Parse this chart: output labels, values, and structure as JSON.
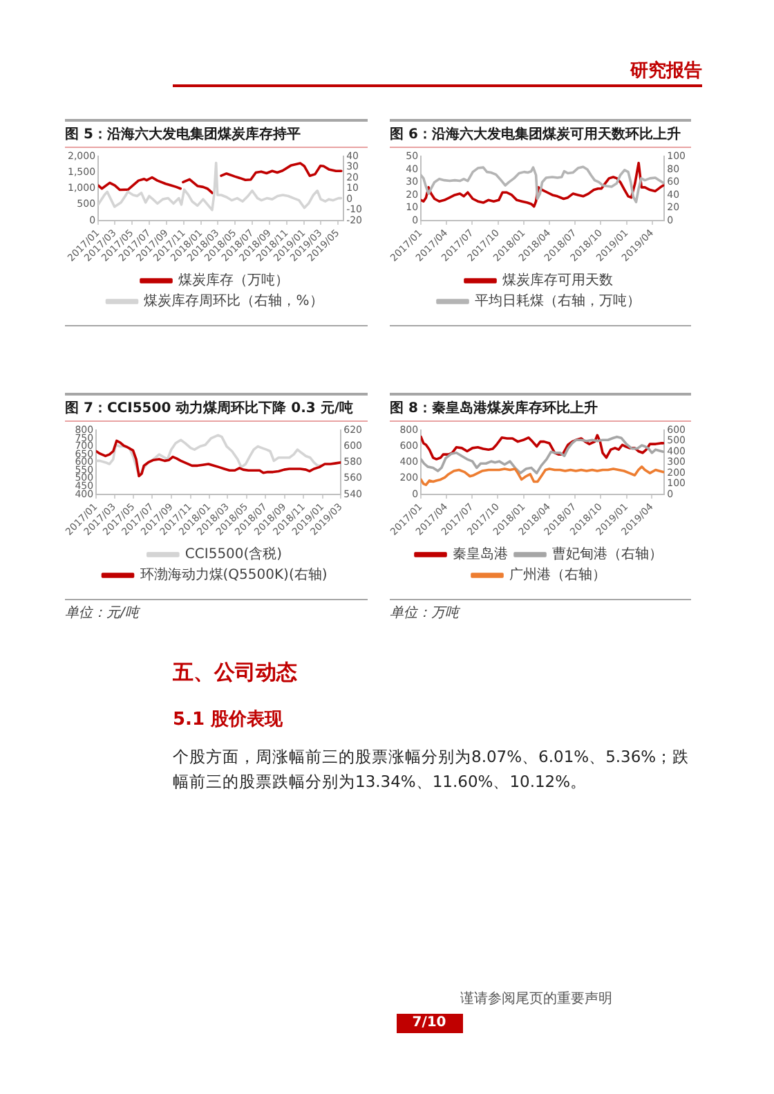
{
  "chart_data": [
    {
      "type": "other",
      "title": "研究报告"
    },
    {
      "type": "line",
      "title": "图 5：沿海六大发电集团煤炭库存持平",
      "legend": "bottom",
      "grid": false,
      "xlim": [
        "2017-01-01",
        "2019-05-21"
      ],
      "xticks": [
        {
          "value": "2017-01",
          "label": "2017/01"
        },
        {
          "value": "2017-03",
          "label": "2017/03"
        },
        {
          "value": "2017-05",
          "label": "2017/05"
        },
        {
          "value": "2017-07",
          "label": "2017/07"
        },
        {
          "value": "2017-09",
          "label": "2017/09"
        },
        {
          "value": "2017-11",
          "label": "2017/11"
        },
        {
          "value": "2018-01",
          "label": "2018/01"
        },
        {
          "value": "2018-03",
          "label": "2018/03"
        },
        {
          "value": "2018-05",
          "label": "2018/05"
        },
        {
          "value": "2018-07",
          "label": "2018/07"
        },
        {
          "value": "2018-09",
          "label": "2018/09"
        },
        {
          "value": "2018-11",
          "label": "2018/11"
        },
        {
          "value": "2019-01",
          "label": "2019/01"
        },
        {
          "value": "2019-03",
          "label": "2019/03"
        },
        {
          "value": "2019-05",
          "label": "2019/05"
        }
      ],
      "ylim": [
        0,
        2000
      ],
      "yticks": [
        0,
        500,
        {
          "value": 1000,
          "label": "1,000"
        },
        {
          "value": 1500,
          "label": "1,500"
        },
        {
          "value": 2000,
          "label": "2,000"
        }
      ],
      "y2lim": [
        -20,
        40
      ],
      "y2ticks": [
        -20,
        -10,
        0,
        10,
        20,
        30,
        40
      ],
      "series": [
        {
          "name": "煤炭库存（万吨）",
          "color": "#c00000",
          "x": [
            "2017-01-01",
            "2017-01-14",
            "2017-02-11",
            "2017-03-01",
            "2017-03-19",
            "2017-04-17",
            "2017-05-24",
            "2017-06-13",
            "2017-06-22",
            "2017-07-11",
            "2017-07-30",
            "2017-08-28",
            "2017-09-16",
            "2017-10-05",
            "2017-10-20",
            "2017-10-25",
            "2017-10-29",
            "2017-11-21",
            "2017-12-19",
            "2018-01-08",
            "2018-01-23",
            "2018-02-10",
            "2018-02-25",
            "2018-03-13",
            "2018-04-01",
            "2018-04-30",
            "2018-05-18",
            "2018-06-07",
            "2018-06-26",
            "2018-07-14",
            "2018-08-02",
            "2018-08-21",
            "2018-09-10",
            "2018-09-28",
            "2018-10-17",
            "2018-11-15",
            "2018-12-19",
            "2019-01-02",
            "2019-01-21",
            "2019-02-09",
            "2019-02-28",
            "2019-03-11",
            "2019-03-30",
            "2019-04-24",
            "2019-05-13"
          ],
          "values": [
            1100,
            1000,
            1180,
            1100,
            960,
            970,
            1250,
            1300,
            1260,
            1350,
            1250,
            1150,
            1100,
            1050,
            1000,
            null,
            1200,
            1290,
            1080,
            1050,
            1000,
            860,
            null,
            1400,
            1470,
            1380,
            1330,
            1270,
            1280,
            1500,
            1530,
            1480,
            1550,
            1500,
            1560,
            1720,
            1790,
            1700,
            1400,
            1450,
            1710,
            1700,
            1600,
            1550,
            1550
          ]
        },
        {
          "name": "煤炭库存周环比（右轴，%）",
          "color": "#d4d4d4",
          "axis": "y2",
          "x": [
            "2017-01-01",
            "2017-01-23",
            "2017-02-02",
            "2017-02-15",
            "2017-02-28",
            "2017-03-23",
            "2017-04-07",
            "2017-04-16",
            "2017-05-05",
            "2017-05-19",
            "2017-06-03",
            "2017-06-18",
            "2017-07-01",
            "2017-07-14",
            "2017-07-30",
            "2017-08-18",
            "2017-09-06",
            "2017-09-25",
            "2017-10-14",
            "2017-10-23",
            "2017-11-02",
            "2017-11-17",
            "2017-11-30",
            "2017-12-19",
            "2018-01-08",
            "2018-01-27",
            "2018-02-09",
            "2018-02-16",
            "2018-02-23",
            "2018-02-28",
            "2018-03-13",
            "2018-04-01",
            "2018-04-20",
            "2018-05-09",
            "2018-05-28",
            "2018-06-16",
            "2018-07-01",
            "2018-07-20",
            "2018-08-03",
            "2018-08-22",
            "2018-09-10",
            "2018-09-29",
            "2018-10-18",
            "2018-11-06",
            "2018-11-25",
            "2018-12-14",
            "2019-01-02",
            "2019-01-17",
            "2019-02-03",
            "2019-02-17",
            "2019-03-01",
            "2019-03-17",
            "2019-03-30",
            "2019-04-14",
            "2019-05-03",
            "2019-05-12"
          ],
          "values": [
            -5,
            4,
            7,
            0,
            -7,
            -3,
            3,
            7,
            4,
            3,
            6,
            -3,
            3,
            0,
            -4,
            0,
            1,
            -4,
            1,
            -5,
            9,
            4,
            -2,
            -6,
            0,
            -6,
            -10,
            4,
            34,
            4,
            4,
            2,
            -1,
            1,
            -2,
            3,
            8,
            1,
            -1,
            1,
            0,
            3,
            4,
            3,
            1,
            -1,
            -8,
            -4,
            4,
            8,
            0,
            -2,
            0,
            -1,
            1,
            1
          ]
        }
      ]
    },
    {
      "type": "line",
      "title": "图 6：沿海六大发电集团煤炭可用天数环比上升",
      "legend": "bottom",
      "grid": false,
      "xlim": [
        "2017-01-01",
        "2019-05-14"
      ],
      "xticks": [
        {
          "value": "2017-01",
          "label": "2017/01"
        },
        {
          "value": "2017-04",
          "label": "2017/04"
        },
        {
          "value": "2017-07",
          "label": "2017/07"
        },
        {
          "value": "2017-10",
          "label": "2017/10"
        },
        {
          "value": "2018-01",
          "label": "2018/01"
        },
        {
          "value": "2018-04",
          "label": "2018/04"
        },
        {
          "value": "2018-07",
          "label": "2018/07"
        },
        {
          "value": "2018-10",
          "label": "2018/10"
        },
        {
          "value": "2019-01",
          "label": "2019/01"
        },
        {
          "value": "2019-04",
          "label": "2019/04"
        }
      ],
      "ylim": [
        0,
        50
      ],
      "yticks": [
        0,
        10,
        20,
        30,
        40,
        50
      ],
      "y2lim": [
        0,
        100
      ],
      "y2ticks": [
        0,
        20,
        40,
        60,
        80,
        100
      ],
      "series": [
        {
          "name": "煤炭库存可用天数",
          "color": "#c00000",
          "x": [
            "2017-01-01",
            "2017-01-10",
            "2017-01-19",
            "2017-01-28",
            "2017-02-06",
            "2017-02-18",
            "2017-03-07",
            "2017-03-25",
            "2017-04-13",
            "2017-05-01",
            "2017-05-19",
            "2017-06-02",
            "2017-06-16",
            "2017-07-04",
            "2017-07-22",
            "2017-08-10",
            "2017-08-28",
            "2017-09-16",
            "2017-10-04",
            "2017-10-17",
            "2017-11-01",
            "2017-11-19",
            "2017-12-07",
            "2017-12-25",
            "2018-01-13",
            "2018-01-27",
            "2018-02-06",
            "2018-02-13",
            "2018-02-21",
            "2018-03-07",
            "2018-03-25",
            "2018-04-12",
            "2018-04-30",
            "2018-05-22",
            "2018-06-06",
            "2018-06-24",
            "2018-07-12",
            "2018-07-30",
            "2018-08-18",
            "2018-09-06",
            "2018-09-21",
            "2018-10-03",
            "2018-10-16",
            "2018-10-30",
            "2018-11-14",
            "2018-11-27",
            "2018-12-09",
            "2018-12-24",
            "2019-01-06",
            "2019-01-17",
            "2019-01-30",
            "2019-02-12",
            "2019-02-22",
            "2019-03-06",
            "2019-03-24",
            "2019-04-12",
            "2019-04-30",
            "2019-05-14"
          ],
          "values": [
            16,
            15,
            18,
            26,
            21,
            17,
            15,
            16,
            18,
            20,
            21,
            19,
            22,
            17,
            15,
            14,
            16,
            15,
            16,
            22,
            22,
            20,
            16,
            15,
            14,
            13,
            11,
            15,
            26,
            24,
            22,
            20,
            19,
            17,
            18,
            21,
            20,
            19,
            21,
            24,
            25,
            25,
            29,
            33,
            34,
            33,
            30,
            24,
            19,
            18,
            29,
            45,
            26,
            26,
            24,
            23,
            26,
            28
          ]
        },
        {
          "name": "平均日耗煤（右轴，万吨）",
          "color": "#b4b4b4",
          "axis": "y2",
          "x": [
            "2017-01-01",
            "2017-01-10",
            "2017-01-19",
            "2017-01-28",
            "2017-02-06",
            "2017-02-18",
            "2017-03-07",
            "2017-03-25",
            "2017-04-13",
            "2017-05-01",
            "2017-05-19",
            "2017-06-02",
            "2017-06-16",
            "2017-07-04",
            "2017-07-22",
            "2017-08-10",
            "2017-08-23",
            "2017-09-06",
            "2017-09-24",
            "2017-10-12",
            "2017-10-27",
            "2017-11-09",
            "2017-11-27",
            "2017-12-15",
            "2018-01-02",
            "2018-01-15",
            "2018-01-27",
            "2018-02-03",
            "2018-02-13",
            "2018-02-18",
            "2018-02-27",
            "2018-03-07",
            "2018-03-21",
            "2018-04-12",
            "2018-04-30",
            "2018-05-15",
            "2018-05-24",
            "2018-06-06",
            "2018-06-24",
            "2018-07-12",
            "2018-07-30",
            "2018-08-14",
            "2018-08-27",
            "2018-09-09",
            "2018-09-24",
            "2018-10-08",
            "2018-10-21",
            "2018-11-08",
            "2018-11-26",
            "2018-12-09",
            "2018-12-24",
            "2019-01-06",
            "2019-01-15",
            "2019-01-24",
            "2019-02-03",
            "2019-02-12",
            "2019-02-21",
            "2019-03-06",
            "2019-03-24",
            "2019-04-12",
            "2019-04-26",
            "2019-05-14"
          ],
          "values": [
            71,
            66,
            53,
            42,
            50,
            60,
            65,
            63,
            62,
            63,
            62,
            65,
            62,
            76,
            82,
            83,
            76,
            75,
            72,
            63,
            55,
            60,
            66,
            74,
            76,
            75,
            77,
            83,
            71,
            34,
            42,
            60,
            67,
            68,
            67,
            68,
            77,
            74,
            75,
            82,
            84,
            80,
            71,
            63,
            60,
            55,
            54,
            53,
            58,
            71,
            79,
            76,
            60,
            37,
            29,
            50,
            66,
            63,
            66,
            67,
            63,
            58
          ]
        }
      ]
    },
    {
      "type": "line",
      "title": "图 7：CCI5500 动力煤周环比下降 0.3 元/吨",
      "legend": "bottom",
      "grid": false,
      "annotations": [
        "单位：元/吨"
      ],
      "xlim": [
        "2017-01-01",
        "2019-03-01"
      ],
      "xticks": [
        {
          "value": "2017-01",
          "label": "2017/01"
        },
        {
          "value": "2017-03",
          "label": "2017/03"
        },
        {
          "value": "2017-05",
          "label": "2017/05"
        },
        {
          "value": "2017-07",
          "label": "2017/07"
        },
        {
          "value": "2017-09",
          "label": "2017/09"
        },
        {
          "value": "2017-11",
          "label": "2017/11"
        },
        {
          "value": "2018-01",
          "label": "2018/01"
        },
        {
          "value": "2018-03",
          "label": "2018/03"
        },
        {
          "value": "2018-05",
          "label": "2018/05"
        },
        {
          "value": "2018-07",
          "label": "2018/07"
        },
        {
          "value": "2018-09",
          "label": "2018/09"
        },
        {
          "value": "2018-11",
          "label": "2018/11"
        },
        {
          "value": "2019-01",
          "label": "2019/01"
        },
        {
          "value": "2019-03",
          "label": "2019/03"
        }
      ],
      "ylim": [
        400,
        800
      ],
      "yticks": [
        400,
        450,
        500,
        550,
        600,
        650,
        700,
        750,
        800
      ],
      "y2lim": [
        540,
        620
      ],
      "y2ticks": [
        540,
        560,
        580,
        600,
        620
      ],
      "series": [
        {
          "name": "CCI5500(含税)",
          "color": "#d4d4d4",
          "x": [
            "2017-01-01",
            "2017-01-13",
            "2017-01-31",
            "2017-02-13",
            "2017-02-25",
            "2017-03-05",
            "2017-03-19",
            "2017-03-31",
            "2017-04-18",
            "2017-04-30",
            "2017-05-14",
            "2017-05-23",
            "2017-06-01",
            "2017-06-18",
            "2017-07-05",
            "2017-07-23",
            "2017-08-10",
            "2017-08-19",
            "2017-08-31",
            "2017-09-14",
            "2017-10-01",
            "2017-10-15",
            "2017-11-02",
            "2017-11-14",
            "2017-12-02",
            "2017-12-19",
            "2018-01-06",
            "2018-01-29",
            "2018-02-10",
            "2018-02-26",
            "2018-03-15",
            "2018-04-02",
            "2018-04-14",
            "2018-04-28",
            "2018-05-12",
            "2018-05-24",
            "2018-06-06",
            "2018-06-20",
            "2018-07-04",
            "2018-07-16",
            "2018-07-28",
            "2018-08-12",
            "2018-08-30",
            "2018-09-16",
            "2018-09-30",
            "2018-10-12",
            "2018-10-25",
            "2018-11-08",
            "2018-11-22",
            "2018-12-04",
            "2018-12-16",
            "2018-12-27"
          ],
          "values": [
            610,
            610,
            600,
            590,
            620,
            710,
            700,
            700,
            690,
            640,
            550,
            520,
            560,
            600,
            620,
            650,
            630,
            620,
            680,
            720,
            740,
            720,
            690,
            680,
            700,
            710,
            750,
            770,
            760,
            700,
            670,
            620,
            570,
            590,
            640,
            680,
            700,
            690,
            680,
            670,
            610,
            630,
            630,
            630,
            650,
            680,
            660,
            640,
            630,
            600,
            580,
            580
          ]
        },
        {
          "name": "环渤海动力煤(Q5500K)(右轴)",
          "color": "#c00000",
          "axis": "y2",
          "x": [
            "2017-01-01",
            "2017-01-13",
            "2017-01-31",
            "2017-02-13",
            "2017-02-25",
            "2017-03-08",
            "2017-03-19",
            "2017-03-31",
            "2017-04-12",
            "2017-04-30",
            "2017-05-10",
            "2017-05-19",
            "2017-05-28",
            "2017-06-04",
            "2017-06-18",
            "2017-07-05",
            "2017-07-23",
            "2017-08-10",
            "2017-08-24",
            "2017-09-05",
            "2017-09-17",
            "2017-10-01",
            "2017-10-19",
            "2017-11-06",
            "2017-11-24",
            "2017-12-11",
            "2017-12-29",
            "2018-01-15",
            "2018-02-02",
            "2018-02-18",
            "2018-03-07",
            "2018-03-24",
            "2018-04-08",
            "2018-04-20",
            "2018-05-07",
            "2018-05-24",
            "2018-06-12",
            "2018-06-24",
            "2018-07-08",
            "2018-07-25",
            "2018-08-12",
            "2018-08-30",
            "2018-09-16",
            "2018-10-03",
            "2018-10-21",
            "2018-11-08",
            "2018-11-20",
            "2018-12-04",
            "2018-12-21",
            "2019-01-08",
            "2019-01-26",
            "2019-02-13",
            "2019-03-01"
          ],
          "values": [
            594,
            591,
            588,
            590,
            594,
            607,
            605,
            601,
            599,
            595,
            584,
            563,
            566,
            576,
            580,
            583,
            584,
            582,
            583,
            587,
            585,
            582,
            579,
            576,
            576,
            577,
            578,
            576,
            574,
            572,
            570,
            570,
            573,
            571,
            570,
            570,
            570,
            567,
            568,
            568,
            569,
            571,
            572,
            572,
            572,
            571,
            569,
            572,
            574,
            578,
            578,
            579,
            580
          ]
        }
      ]
    },
    {
      "type": "line",
      "title": "图 8：秦皇岛港煤炭库存环比上升",
      "legend": "bottom",
      "grid": false,
      "annotations": [
        "单位：万吨"
      ],
      "xlim": [
        "2017-01-01",
        "2019-05-15"
      ],
      "xticks": [
        {
          "value": "2017-01",
          "label": "2017/01"
        },
        {
          "value": "2017-04",
          "label": "2017/04"
        },
        {
          "value": "2017-07",
          "label": "2017/07"
        },
        {
          "value": "2017-10",
          "label": "2017/10"
        },
        {
          "value": "2018-01",
          "label": "2018/01"
        },
        {
          "value": "2018-04",
          "label": "2018/04"
        },
        {
          "value": "2018-07",
          "label": "2018/07"
        },
        {
          "value": "2018-10",
          "label": "2018/10"
        },
        {
          "value": "2019-01",
          "label": "2019/01"
        },
        {
          "value": "2019-04",
          "label": "2019/04"
        }
      ],
      "ylim": [
        0,
        800
      ],
      "yticks": [
        0,
        200,
        400,
        600,
        800
      ],
      "y2lim": [
        0,
        600
      ],
      "y2ticks": [
        0,
        100,
        200,
        300,
        400,
        500,
        600
      ],
      "series": [
        {
          "name": "秦皇岛港",
          "color": "#c00000",
          "x": [
            "2017-01-01",
            "2017-01-10",
            "2017-01-19",
            "2017-01-31",
            "2017-02-13",
            "2017-02-25",
            "2017-03-12",
            "2017-03-21",
            "2017-04-09",
            "2017-04-22",
            "2017-05-07",
            "2017-05-26",
            "2017-06-14",
            "2017-07-03",
            "2017-07-22",
            "2017-08-10",
            "2017-08-29",
            "2017-09-13",
            "2017-09-26",
            "2017-10-15",
            "2017-11-03",
            "2017-11-22",
            "2017-12-11",
            "2017-12-30",
            "2018-01-18",
            "2018-02-01",
            "2018-02-16",
            "2018-03-01",
            "2018-03-14",
            "2018-04-02",
            "2018-04-21",
            "2018-05-04",
            "2018-05-19",
            "2018-06-07",
            "2018-06-22",
            "2018-07-05",
            "2018-07-24",
            "2018-08-07",
            "2018-08-22",
            "2018-09-10",
            "2018-09-19",
            "2018-09-29",
            "2018-10-08",
            "2018-10-21",
            "2018-11-06",
            "2018-11-21",
            "2018-12-04",
            "2018-12-17",
            "2018-12-28",
            "2019-01-11",
            "2019-01-30",
            "2019-02-12",
            "2019-02-27",
            "2019-03-12",
            "2019-03-25",
            "2019-04-14",
            "2019-05-02",
            "2019-05-11"
          ],
          "values": [
            720,
            640,
            620,
            560,
            460,
            440,
            460,
            500,
            500,
            520,
            590,
            580,
            540,
            580,
            590,
            570,
            560,
            570,
            620,
            710,
            700,
            700,
            660,
            680,
            710,
            660,
            600,
            660,
            660,
            640,
            520,
            500,
            500,
            620,
            660,
            680,
            700,
            660,
            630,
            660,
            740,
            660,
            520,
            460,
            560,
            580,
            560,
            620,
            600,
            580,
            580,
            540,
            520,
            560,
            630,
            630,
            640,
            640
          ]
        },
        {
          "name": "曹妃甸港（右轴）",
          "color": "#a6a6a6",
          "axis": "y2",
          "x": [
            "2017-01-01",
            "2017-01-12",
            "2017-01-25",
            "2017-02-13",
            "2017-03-02",
            "2017-03-15",
            "2017-03-30",
            "2017-04-18",
            "2017-05-07",
            "2017-05-26",
            "2017-06-14",
            "2017-07-03",
            "2017-07-18",
            "2017-08-01",
            "2017-08-20",
            "2017-09-08",
            "2017-09-21",
            "2017-10-06",
            "2017-10-25",
            "2017-11-13",
            "2017-12-01",
            "2017-12-20",
            "2018-01-09",
            "2018-01-28",
            "2018-02-16",
            "2018-03-04",
            "2018-03-23",
            "2018-04-08",
            "2018-04-21",
            "2018-05-10",
            "2018-05-25",
            "2018-06-07",
            "2018-06-22",
            "2018-07-05",
            "2018-07-24",
            "2018-08-12",
            "2018-09-01",
            "2018-09-19",
            "2018-10-08",
            "2018-10-27",
            "2018-11-15",
            "2018-11-28",
            "2018-12-13",
            "2019-01-01",
            "2019-01-20",
            "2019-02-08",
            "2019-02-24",
            "2019-03-07",
            "2019-03-20",
            "2019-04-01",
            "2019-04-14",
            "2019-04-27",
            "2019-05-11"
          ],
          "values": [
            330,
            290,
            260,
            250,
            220,
            250,
            340,
            380,
            390,
            360,
            330,
            310,
            250,
            290,
            290,
            310,
            300,
            310,
            280,
            310,
            250,
            200,
            240,
            250,
            200,
            270,
            330,
            400,
            390,
            390,
            360,
            430,
            480,
            510,
            510,
            500,
            510,
            500,
            510,
            510,
            530,
            540,
            530,
            470,
            430,
            430,
            460,
            450,
            430,
            390,
            420,
            410,
            400
          ]
        },
        {
          "name": "广州港（右轴）",
          "color": "#ed7d31",
          "axis": "y2",
          "x": [
            "2017-01-01",
            "2017-01-10",
            "2017-01-19",
            "2017-01-31",
            "2017-02-13",
            "2017-02-25",
            "2017-03-12",
            "2017-03-27",
            "2017-04-09",
            "2017-04-28",
            "2017-05-16",
            "2017-06-05",
            "2017-06-24",
            "2017-07-07",
            "2017-07-22",
            "2017-08-06",
            "2017-08-29",
            "2017-09-17",
            "2017-10-06",
            "2017-10-25",
            "2017-11-13",
            "2017-12-01",
            "2017-12-11",
            "2017-12-24",
            "2018-01-09",
            "2018-01-24",
            "2018-02-06",
            "2018-02-19",
            "2018-03-04",
            "2018-03-19",
            "2018-04-02",
            "2018-04-21",
            "2018-05-10",
            "2018-05-28",
            "2018-06-16",
            "2018-07-05",
            "2018-07-24",
            "2018-08-12",
            "2018-09-01",
            "2018-09-19",
            "2018-10-08",
            "2018-10-27",
            "2018-11-15",
            "2018-12-04",
            "2018-12-23",
            "2019-01-11",
            "2019-01-30",
            "2019-02-12",
            "2019-02-24",
            "2019-03-07",
            "2019-03-25",
            "2019-04-14",
            "2019-04-27",
            "2019-05-11"
          ],
          "values": [
            140,
            100,
            90,
            130,
            120,
            130,
            140,
            160,
            190,
            220,
            230,
            210,
            170,
            180,
            200,
            220,
            230,
            230,
            230,
            240,
            230,
            240,
            200,
            140,
            170,
            190,
            120,
            120,
            170,
            230,
            240,
            230,
            230,
            220,
            230,
            220,
            230,
            220,
            230,
            220,
            230,
            230,
            240,
            230,
            220,
            200,
            180,
            230,
            260,
            230,
            200,
            230,
            220,
            210
          ]
        }
      ]
    },
    {
      "type": "other",
      "title": "五、公司动态",
      "subtitle": "5.1 股价表现",
      "annotations": [
        "个股方面，周涨幅前三的股票涨幅分别为8.07%、6.01%、5.36%；跌幅前三的股票跌幅分别为13.34%、11.60%、10.12%。"
      ]
    },
    {
      "type": "other",
      "annotations": [
        "谨请参阅尾页的重要声明",
        "7/10"
      ]
    }
  ]
}
